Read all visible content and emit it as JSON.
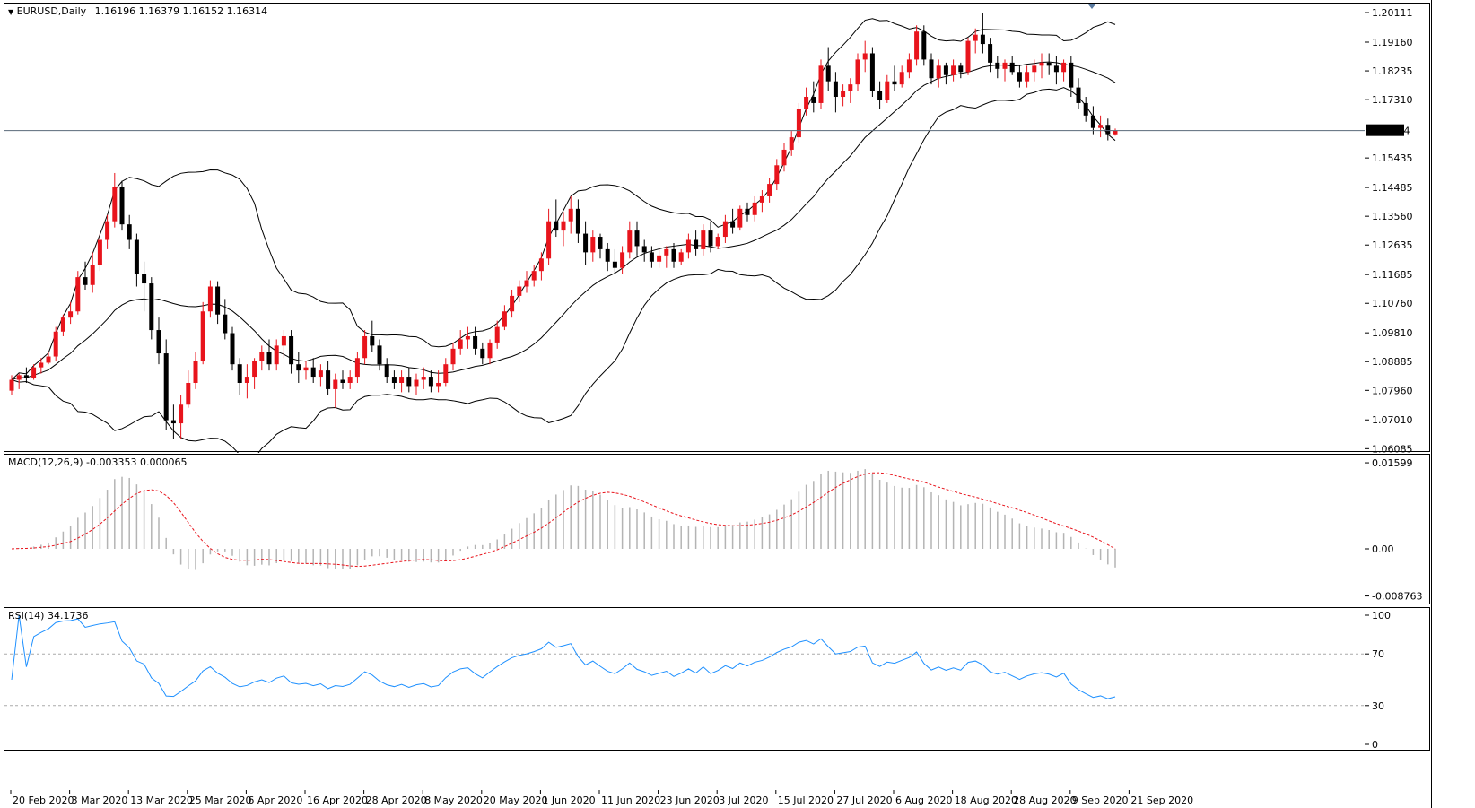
{
  "header": {
    "symbol": "EURUSD,Daily",
    "ohlc": "1.16196 1.16379 1.16152 1.16314"
  },
  "macd": {
    "label": "MACD(12,26,9)",
    "values": "-0.003353 0.000065"
  },
  "rsi": {
    "label": "RSI(14)",
    "value": "34.1736"
  },
  "price_axis": [
    "1.20111",
    "1.19160",
    "1.18235",
    "1.17310",
    "1.16314",
    "1.15435",
    "1.14485",
    "1.13560",
    "1.12635",
    "1.11685",
    "1.10760",
    "1.09810",
    "1.08885",
    "1.07960",
    "1.07010",
    "1.06085"
  ],
  "current_price": "1.16314",
  "macd_axis": [
    "0.01599",
    "0.00",
    "-0.008763"
  ],
  "rsi_axis": [
    "100",
    "70",
    "30",
    "0"
  ],
  "dates": [
    "20 Feb 2020",
    "3 Mar 2020",
    "13 Mar 2020",
    "25 Mar 2020",
    "6 Apr 2020",
    "16 Apr 2020",
    "28 Apr 2020",
    "8 May 2020",
    "20 May 2020",
    "1 Jun 2020",
    "11 Jun 2020",
    "23 Jun 2020",
    "3 Jul 2020",
    "15 Jul 2020",
    "27 Jul 2020",
    "6 Aug 2020",
    "18 Aug 2020",
    "28 Aug 2020",
    "9 Sep 2020",
    "21 Sep 2020"
  ],
  "colors": {
    "bull": "#e8141c",
    "bear": "#000000",
    "band": "#000000",
    "signal": "#e8141c",
    "hist": "#b4b4b4",
    "rsi": "#1e90ff",
    "current_line": "#5a6a7a"
  },
  "chart_data": {
    "type": "candlestick",
    "title": "EURUSD,Daily",
    "x_start": "20 Feb 2020",
    "candles": [
      [
        1.0795,
        1.0845,
        1.078,
        1.083
      ],
      [
        1.083,
        1.085,
        1.08,
        1.0845
      ],
      [
        1.0845,
        1.087,
        1.082,
        1.0835
      ],
      [
        1.0835,
        1.088,
        1.083,
        1.087
      ],
      [
        1.087,
        1.09,
        1.085,
        1.0885
      ],
      [
        1.0885,
        1.092,
        1.088,
        1.0905
      ],
      [
        1.0905,
        1.1,
        1.089,
        1.0985
      ],
      [
        1.0985,
        1.104,
        1.097,
        1.103
      ],
      [
        1.103,
        1.108,
        1.101,
        1.105
      ],
      [
        1.105,
        1.118,
        1.104,
        1.116
      ],
      [
        1.116,
        1.121,
        1.112,
        1.1135
      ],
      [
        1.1135,
        1.124,
        1.111,
        1.12
      ],
      [
        1.12,
        1.13,
        1.118,
        1.128
      ],
      [
        1.128,
        1.136,
        1.125,
        1.134
      ],
      [
        1.134,
        1.1495,
        1.132,
        1.145
      ],
      [
        1.145,
        1.147,
        1.131,
        1.133
      ],
      [
        1.133,
        1.136,
        1.125,
        1.128
      ],
      [
        1.128,
        1.13,
        1.113,
        1.117
      ],
      [
        1.117,
        1.121,
        1.105,
        1.114
      ],
      [
        1.114,
        1.116,
        1.096,
        1.099
      ],
      [
        1.099,
        1.103,
        1.088,
        1.0915
      ],
      [
        1.0915,
        1.096,
        1.067,
        1.07
      ],
      [
        1.07,
        1.075,
        1.064,
        1.069
      ],
      [
        1.069,
        1.078,
        1.064,
        1.075
      ],
      [
        1.075,
        1.086,
        1.074,
        1.082
      ],
      [
        1.082,
        1.092,
        1.08,
        1.089
      ],
      [
        1.089,
        1.108,
        1.088,
        1.105
      ],
      [
        1.105,
        1.115,
        1.103,
        1.113
      ],
      [
        1.113,
        1.1147,
        1.101,
        1.104
      ],
      [
        1.104,
        1.109,
        1.096,
        1.098
      ],
      [
        1.098,
        1.1,
        1.086,
        1.088
      ],
      [
        1.088,
        1.09,
        1.078,
        1.082
      ],
      [
        1.082,
        1.088,
        1.077,
        1.084
      ],
      [
        1.084,
        1.09,
        1.08,
        1.089
      ],
      [
        1.089,
        1.094,
        1.086,
        1.092
      ],
      [
        1.092,
        1.096,
        1.086,
        1.088
      ],
      [
        1.088,
        1.096,
        1.086,
        1.094
      ],
      [
        1.094,
        1.099,
        1.09,
        1.097
      ],
      [
        1.097,
        1.099,
        1.085,
        1.088
      ],
      [
        1.088,
        1.092,
        1.082,
        1.086
      ],
      [
        1.086,
        1.089,
        1.083,
        1.087
      ],
      [
        1.087,
        1.09,
        1.082,
        1.084
      ],
      [
        1.084,
        1.088,
        1.081,
        1.086
      ],
      [
        1.086,
        1.089,
        1.078,
        1.08
      ],
      [
        1.08,
        1.085,
        1.074,
        1.083
      ],
      [
        1.083,
        1.086,
        1.08,
        1.082
      ],
      [
        1.082,
        1.086,
        1.08,
        1.084
      ],
      [
        1.084,
        1.092,
        1.082,
        1.09
      ],
      [
        1.09,
        1.099,
        1.088,
        1.097
      ],
      [
        1.097,
        1.102,
        1.092,
        1.094
      ],
      [
        1.094,
        1.096,
        1.086,
        1.088
      ],
      [
        1.088,
        1.09,
        1.082,
        1.084
      ],
      [
        1.084,
        1.086,
        1.08,
        1.082
      ],
      [
        1.082,
        1.086,
        1.079,
        1.084
      ],
      [
        1.084,
        1.087,
        1.079,
        1.081
      ],
      [
        1.081,
        1.085,
        1.078,
        1.083
      ],
      [
        1.083,
        1.087,
        1.08,
        1.084
      ],
      [
        1.084,
        1.086,
        1.079,
        1.081
      ],
      [
        1.081,
        1.086,
        1.079,
        1.082
      ],
      [
        1.082,
        1.09,
        1.081,
        1.088
      ],
      [
        1.088,
        1.095,
        1.086,
        1.093
      ],
      [
        1.093,
        1.099,
        1.091,
        1.096
      ],
      [
        1.096,
        1.1,
        1.093,
        1.097
      ],
      [
        1.097,
        1.1,
        1.091,
        1.093
      ],
      [
        1.093,
        1.095,
        1.088,
        1.09
      ],
      [
        1.09,
        1.096,
        1.088,
        1.095
      ],
      [
        1.095,
        1.102,
        1.093,
        1.1
      ],
      [
        1.1,
        1.107,
        1.099,
        1.105
      ],
      [
        1.105,
        1.112,
        1.103,
        1.11
      ],
      [
        1.11,
        1.115,
        1.108,
        1.113
      ],
      [
        1.113,
        1.118,
        1.111,
        1.115
      ],
      [
        1.115,
        1.12,
        1.113,
        1.118
      ],
      [
        1.118,
        1.124,
        1.115,
        1.122
      ],
      [
        1.122,
        1.138,
        1.12,
        1.134
      ],
      [
        1.134,
        1.141,
        1.129,
        1.131
      ],
      [
        1.131,
        1.137,
        1.126,
        1.134
      ],
      [
        1.134,
        1.142,
        1.13,
        1.138
      ],
      [
        1.138,
        1.141,
        1.127,
        1.13
      ],
      [
        1.13,
        1.134,
        1.12,
        1.124
      ],
      [
        1.124,
        1.131,
        1.121,
        1.129
      ],
      [
        1.129,
        1.13,
        1.122,
        1.125
      ],
      [
        1.125,
        1.127,
        1.118,
        1.121
      ],
      [
        1.121,
        1.125,
        1.117,
        1.119
      ],
      [
        1.119,
        1.126,
        1.117,
        1.124
      ],
      [
        1.124,
        1.134,
        1.122,
        1.131
      ],
      [
        1.131,
        1.134,
        1.123,
        1.126
      ],
      [
        1.126,
        1.128,
        1.121,
        1.124
      ],
      [
        1.124,
        1.126,
        1.119,
        1.121
      ],
      [
        1.121,
        1.125,
        1.119,
        1.123
      ],
      [
        1.123,
        1.126,
        1.119,
        1.125
      ],
      [
        1.125,
        1.127,
        1.119,
        1.121
      ],
      [
        1.121,
        1.125,
        1.12,
        1.124
      ],
      [
        1.124,
        1.13,
        1.122,
        1.128
      ],
      [
        1.128,
        1.131,
        1.123,
        1.125
      ],
      [
        1.125,
        1.133,
        1.123,
        1.131
      ],
      [
        1.131,
        1.134,
        1.124,
        1.126
      ],
      [
        1.126,
        1.13,
        1.125,
        1.129
      ],
      [
        1.129,
        1.136,
        1.127,
        1.134
      ],
      [
        1.134,
        1.138,
        1.13,
        1.132
      ],
      [
        1.132,
        1.139,
        1.131,
        1.138
      ],
      [
        1.138,
        1.14,
        1.134,
        1.136
      ],
      [
        1.136,
        1.142,
        1.134,
        1.14
      ],
      [
        1.14,
        1.144,
        1.137,
        1.142
      ],
      [
        1.142,
        1.148,
        1.14,
        1.146
      ],
      [
        1.146,
        1.154,
        1.144,
        1.152
      ],
      [
        1.152,
        1.159,
        1.15,
        1.157
      ],
      [
        1.157,
        1.163,
        1.155,
        1.161
      ],
      [
        1.161,
        1.172,
        1.159,
        1.17
      ],
      [
        1.17,
        1.177,
        1.168,
        1.174
      ],
      [
        1.174,
        1.179,
        1.169,
        1.172
      ],
      [
        1.172,
        1.186,
        1.17,
        1.184
      ],
      [
        1.184,
        1.19,
        1.176,
        1.179
      ],
      [
        1.179,
        1.182,
        1.169,
        1.174
      ],
      [
        1.174,
        1.178,
        1.171,
        1.176
      ],
      [
        1.176,
        1.18,
        1.172,
        1.178
      ],
      [
        1.178,
        1.188,
        1.176,
        1.186
      ],
      [
        1.186,
        1.192,
        1.182,
        1.188
      ],
      [
        1.188,
        1.19,
        1.174,
        1.176
      ],
      [
        1.176,
        1.179,
        1.17,
        1.173
      ],
      [
        1.173,
        1.181,
        1.172,
        1.179
      ],
      [
        1.179,
        1.184,
        1.176,
        1.178
      ],
      [
        1.178,
        1.184,
        1.177,
        1.182
      ],
      [
        1.182,
        1.188,
        1.18,
        1.186
      ],
      [
        1.186,
        1.197,
        1.184,
        1.195
      ],
      [
        1.195,
        1.197,
        1.184,
        1.186
      ],
      [
        1.186,
        1.188,
        1.178,
        1.18
      ],
      [
        1.18,
        1.186,
        1.177,
        1.184
      ],
      [
        1.184,
        1.185,
        1.178,
        1.181
      ],
      [
        1.181,
        1.186,
        1.179,
        1.184
      ],
      [
        1.184,
        1.185,
        1.18,
        1.182
      ],
      [
        1.182,
        1.193,
        1.181,
        1.192
      ],
      [
        1.192,
        1.196,
        1.188,
        1.194
      ],
      [
        1.194,
        1.2011,
        1.188,
        1.191
      ],
      [
        1.191,
        1.193,
        1.182,
        1.185
      ],
      [
        1.185,
        1.187,
        1.18,
        1.183
      ],
      [
        1.183,
        1.186,
        1.179,
        1.185
      ],
      [
        1.185,
        1.187,
        1.181,
        1.182
      ],
      [
        1.182,
        1.184,
        1.177,
        1.179
      ],
      [
        1.179,
        1.184,
        1.177,
        1.182
      ],
      [
        1.182,
        1.186,
        1.179,
        1.184
      ],
      [
        1.184,
        1.188,
        1.18,
        1.185
      ],
      [
        1.185,
        1.188,
        1.181,
        1.184
      ],
      [
        1.184,
        1.187,
        1.178,
        1.182
      ],
      [
        1.182,
        1.186,
        1.179,
        1.185
      ],
      [
        1.185,
        1.187,
        1.174,
        1.177
      ],
      [
        1.177,
        1.18,
        1.17,
        1.172
      ],
      [
        1.172,
        1.174,
        1.166,
        1.168
      ],
      [
        1.168,
        1.171,
        1.162,
        1.164
      ],
      [
        1.164,
        1.168,
        1.161,
        1.165
      ],
      [
        1.165,
        1.167,
        1.16,
        1.162
      ],
      [
        1.16196,
        1.16379,
        1.16152,
        1.16314
      ]
    ]
  }
}
